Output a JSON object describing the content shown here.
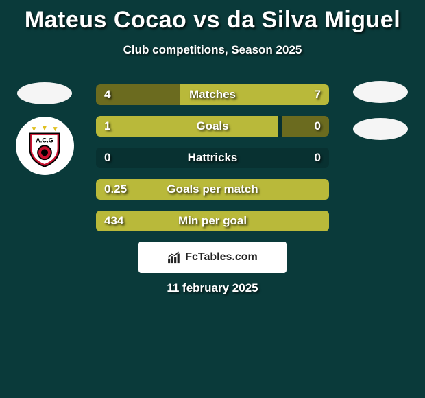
{
  "title": "Mateus Cocao vs da Silva Miguel",
  "subtitle": "Club competitions, Season 2025",
  "brand": "FcTables.com",
  "date": "11 february 2025",
  "colors": {
    "bg": "#0a3a3a",
    "bar_dark": "#6b6b1f",
    "bar_light": "#b9b93a",
    "photo_bg": "#f5f5f5",
    "badge_bg": "#ffffff"
  },
  "rows": [
    {
      "label": "Matches",
      "left_val": "4",
      "right_val": "7",
      "left_pct": 36,
      "right_pct": 64,
      "left_color": "#6b6b1f",
      "right_color": "#b9b93a"
    },
    {
      "label": "Goals",
      "left_val": "1",
      "right_val": "0",
      "left_pct": 78,
      "right_pct": 20,
      "left_color": "#b9b93a",
      "right_color": "#6b6b1f"
    },
    {
      "label": "Hattricks",
      "left_val": "0",
      "right_val": "0",
      "left_pct": 0,
      "right_pct": 0,
      "left_color": "#6b6b1f",
      "right_color": "#6b6b1f"
    },
    {
      "label": "Goals per match",
      "left_val": "0.25",
      "right_val": "",
      "left_pct": 100,
      "right_pct": 0,
      "left_color": "#b9b93a",
      "right_color": "#6b6b1f"
    },
    {
      "label": "Min per goal",
      "left_val": "434",
      "right_val": "",
      "left_pct": 100,
      "right_pct": 0,
      "left_color": "#b9b93a",
      "right_color": "#6b6b1f"
    }
  ]
}
